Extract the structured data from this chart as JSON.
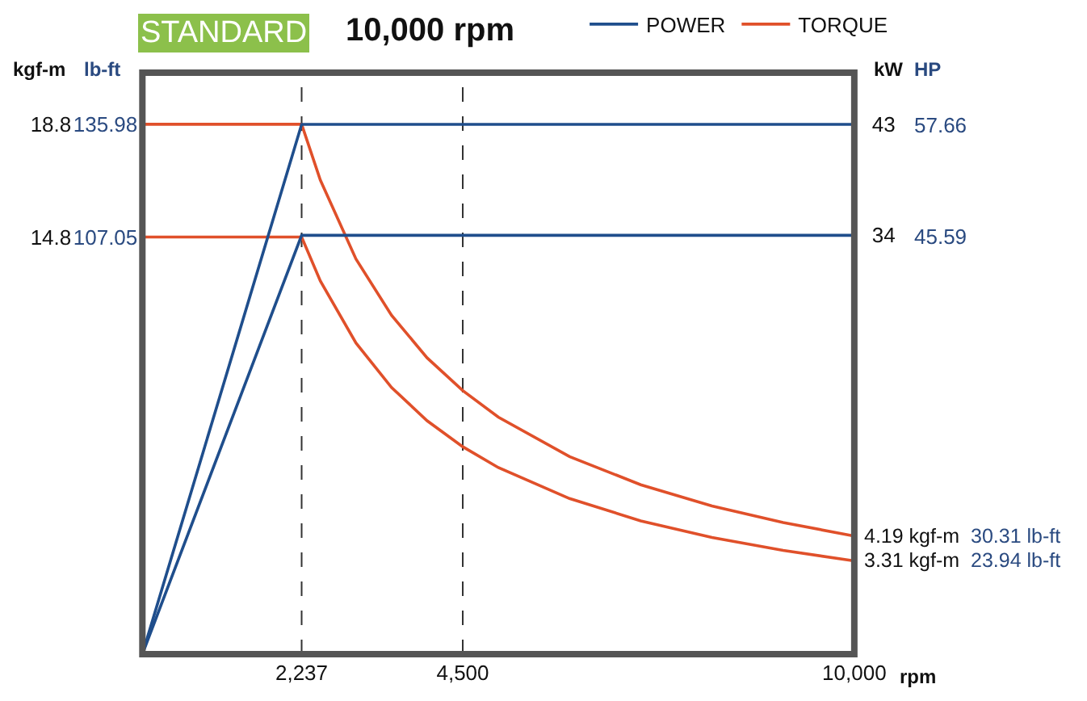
{
  "chart_data": {
    "type": "line",
    "title": "STANDARD",
    "subtitle": "10,000 rpm",
    "xlabel": "rpm",
    "ylabel": "kgf-m",
    "y3label": "lb-ft",
    "y2label": "kW",
    "xlim": [
      0,
      10000
    ],
    "xticks": [
      {
        "value": 2237,
        "label": "2,237"
      },
      {
        "value": 4500,
        "label": "4,500"
      },
      {
        "value": 10000,
        "label": "10,000"
      }
    ],
    "ylim": [
      0,
      20.63
    ],
    "yticks": [
      14.8,
      18.8
    ],
    "y3lim": [
      0,
      149.2
    ],
    "y3ticks": [
      107.05,
      135.98
    ],
    "y2lim": [
      0,
      47.2
    ],
    "y2ticks": [
      34,
      43
    ],
    "series": [
      {
        "name": "POWER",
        "color": "#1f4e8c",
        "axis": "y2",
        "x": [
          0,
          2237,
          10000
        ],
        "values": [
          0,
          43,
          43
        ]
      },
      {
        "color": "#1f4e8c",
        "axis": "y2",
        "x": [
          0,
          2237,
          10000
        ],
        "values": [
          0,
          34,
          34
        ]
      },
      {
        "name": "TORQUE",
        "color": "#e0502a",
        "x": [
          0,
          2237,
          2500,
          3000,
          3500,
          4000,
          4500,
          5000,
          6000,
          7000,
          8000,
          9000,
          10000
        ],
        "values": [
          18.8,
          18.8,
          16.82,
          14.02,
          12.02,
          10.51,
          9.35,
          8.41,
          7.01,
          6.01,
          5.26,
          4.67,
          4.19
        ]
      },
      {
        "color": "#e0502a",
        "x": [
          0,
          2237,
          2500,
          3000,
          3500,
          4000,
          4500,
          5000,
          6000,
          7000,
          8000,
          9000,
          10000
        ],
        "values": [
          14.8,
          14.8,
          13.24,
          11.04,
          9.46,
          8.28,
          7.36,
          6.62,
          5.52,
          4.73,
          4.14,
          3.68,
          3.31
        ]
      }
    ],
    "ref_lines": [
      {
        "axis": "x",
        "value": 2237,
        "line_style": "dashed",
        "color": "#333333"
      },
      {
        "axis": "x",
        "value": 4500,
        "line_style": "dashed",
        "color": "#333333"
      }
    ],
    "annotations": [
      {
        "text": "4.19 kgf-m 30.31 lb-ft",
        "x": 10000,
        "y": 4.19
      },
      {
        "text": "3.31 kgf-m 23.94 lb-ft",
        "x": 10000,
        "y": 3.31
      },
      "57.66",
      "45.59",
      "HP"
    ],
    "legend": "top right",
    "grid": false,
    "marker": "none",
    "line_style": "solid"
  }
}
